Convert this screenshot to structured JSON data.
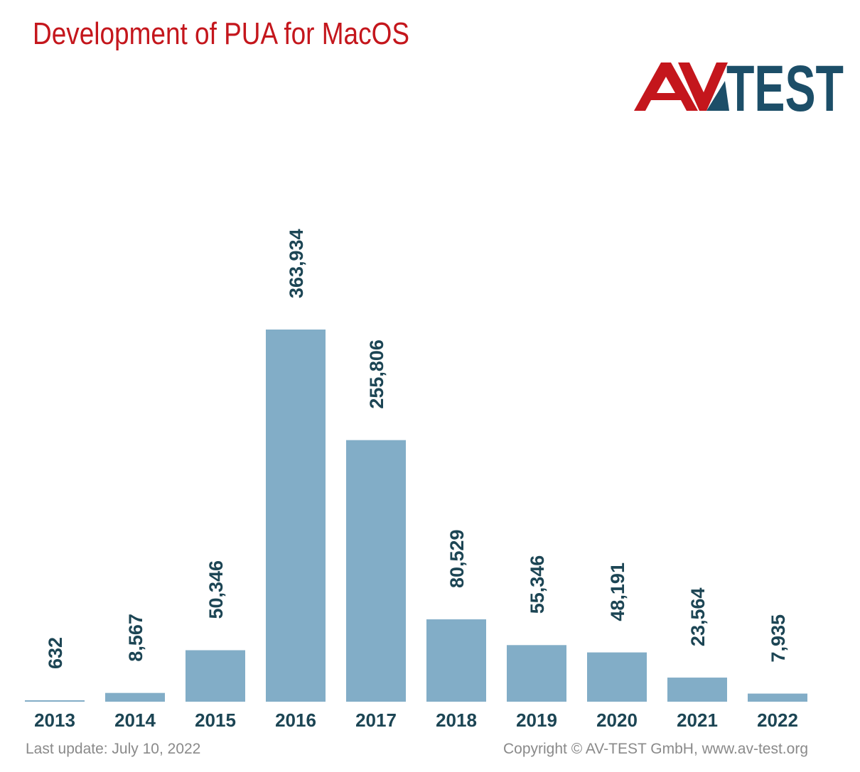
{
  "chart_data": {
    "type": "bar",
    "title": "Development of PUA for MacOS",
    "categories": [
      "2013",
      "2014",
      "2015",
      "2016",
      "2017",
      "2018",
      "2019",
      "2020",
      "2021",
      "2022"
    ],
    "values": [
      632,
      8567,
      50346,
      363934,
      255806,
      80529,
      55346,
      48191,
      23564,
      7935
    ],
    "value_labels": [
      "632",
      "8,567",
      "50,346",
      "363,934",
      "255,806",
      "80,529",
      "55,346",
      "48,191",
      "23,564",
      "7,935"
    ],
    "xlabel": "",
    "ylabel": "",
    "ylim": [
      0,
      370000
    ],
    "grid": false,
    "bar_color": "#82adc7",
    "label_color": "#1c4554"
  },
  "logo": {
    "text": "AV-TEST",
    "colors": {
      "red": "#c4161c",
      "blue": "#1c4e68"
    }
  },
  "footer": {
    "last_update": "Last update: July 10, 2022",
    "copyright": "Copyright © AV-TEST GmbH, www.av-test.org"
  }
}
